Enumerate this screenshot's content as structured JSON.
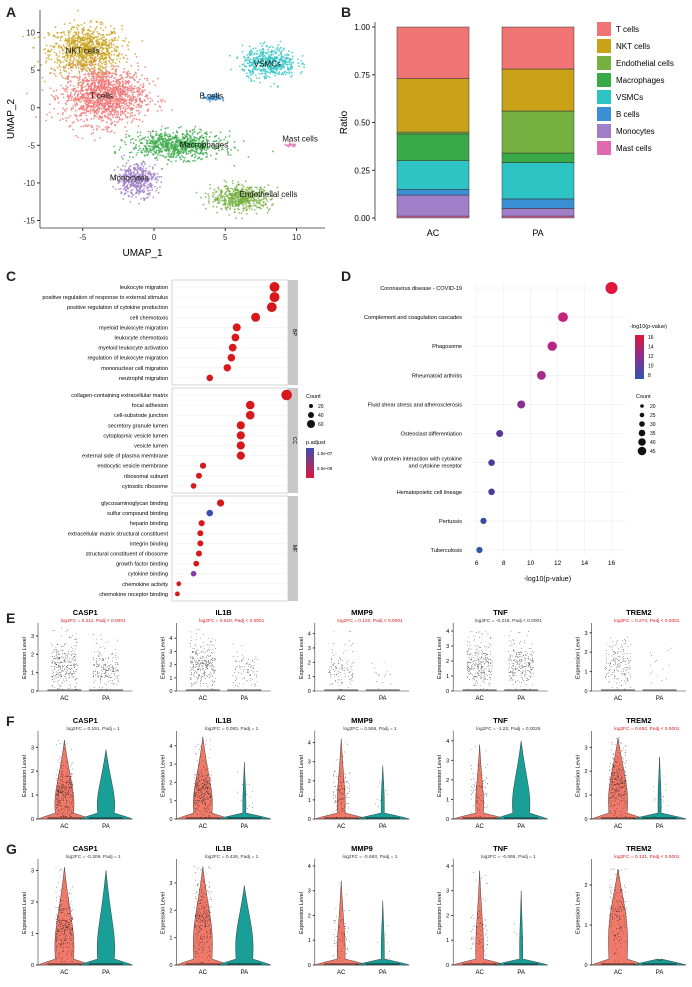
{
  "panel_letters": [
    "A",
    "B",
    "C",
    "D",
    "E",
    "F",
    "G"
  ],
  "colors": {
    "red": "#d7191c",
    "teal": "#1a9e98",
    "salmon": "#f07474",
    "cyan": "#2ec4c4",
    "gold": "#c9a21a",
    "green": "#3aaa48",
    "darkgreen": "#76b041",
    "blue": "#3b8fd4",
    "purple": "#a07fc8",
    "pink": "#e06ab0",
    "orange": "#e08a2a"
  },
  "panelA": {
    "xlabel": "UMAP_1",
    "ylabel": "UMAP_2",
    "xticks": [
      "-5",
      "0",
      "5",
      "10"
    ],
    "yticks": [
      "10",
      "5",
      "0",
      "-5",
      "-10",
      "-15"
    ],
    "xrange": [
      -8,
      12
    ],
    "yrange": [
      -16,
      13
    ],
    "clusters": [
      {
        "label": "NKT cells",
        "color": "#c9a21a",
        "cx": -4.8,
        "cy": 7.6,
        "rx": 2.8,
        "ry": 3.6,
        "n": 900,
        "lx": -6.2,
        "ly": 7.2
      },
      {
        "label": "T cells",
        "color": "#f07474",
        "cx": -3.5,
        "cy": 1.6,
        "rx": 3.2,
        "ry": 4.2,
        "n": 1400,
        "lx": -4.5,
        "ly": 1.2
      },
      {
        "label": "B cells",
        "color": "#3b8fd4",
        "cx": 4.1,
        "cy": 1.3,
        "rx": 0.7,
        "ry": 0.5,
        "n": 60,
        "lx": 3.2,
        "ly": 1.2
      },
      {
        "label": "VSMCs",
        "color": "#2ec4c4",
        "cx": 8.1,
        "cy": 6.0,
        "rx": 2.1,
        "ry": 2.3,
        "n": 500,
        "lx": 7.0,
        "ly": 5.5
      },
      {
        "label": "Mast cells",
        "color": "#e06ab0",
        "cx": 9.6,
        "cy": -5.0,
        "rx": 0.5,
        "ry": 0.3,
        "n": 20,
        "lx": 9.0,
        "ly": -4.5
      },
      {
        "label": "Macrophages",
        "color": "#3aaa48",
        "cx": 1.6,
        "cy": -5.0,
        "rx": 3.5,
        "ry": 2.0,
        "n": 800,
        "lx": 1.8,
        "ly": -5.3
      },
      {
        "label": "Monocytes",
        "color": "#a07fc8",
        "cx": -1.2,
        "cy": -9.6,
        "rx": 1.6,
        "ry": 2.4,
        "n": 450,
        "lx": -3.1,
        "ly": -9.7
      },
      {
        "label": "Endothelial cells",
        "color": "#76b041",
        "cx": 6.1,
        "cy": -12.0,
        "rx": 2.3,
        "ry": 1.8,
        "n": 550,
        "lx": 6.0,
        "ly": -11.9
      }
    ]
  },
  "panelB": {
    "ylabel": "Ratio",
    "categories": [
      "AC",
      "PA"
    ],
    "yticks": [
      "0.00",
      "0.25",
      "0.50",
      "0.75",
      "1.00"
    ],
    "legend": [
      "T cells",
      "NKT cells",
      "Endothelial cells",
      "Macrophages",
      "VSMCs",
      "B cells",
      "Monocytes",
      "Mast cells"
    ],
    "legend_colors": [
      "#f07474",
      "#c9a21a",
      "#76b041",
      "#3aaa48",
      "#2ec4c4",
      "#3b8fd4",
      "#a07fc8",
      "#e06ab0"
    ],
    "stack_order_bottom_up": [
      "Mast cells",
      "Monocytes",
      "B cells",
      "VSMCs",
      "Macrophages",
      "Endothelial cells",
      "NKT cells",
      "T cells"
    ],
    "values": {
      "AC": [
        0.01,
        0.11,
        0.03,
        0.15,
        0.14,
        0.01,
        0.28,
        0.27
      ],
      "PA": [
        0.01,
        0.04,
        0.05,
        0.19,
        0.05,
        0.22,
        0.22,
        0.22
      ]
    },
    "colors_bottom_up": [
      "#e06ab0",
      "#a07fc8",
      "#3b8fd4",
      "#2ec4c4",
      "#3aaa48",
      "#76b041",
      "#c9a21a",
      "#f07474"
    ]
  },
  "panelC": {
    "xlabel": "GeneRatio",
    "xticks": [
      "0.025",
      "0.050",
      "0.075",
      "0.100"
    ],
    "xrange": [
      0.022,
      0.108
    ],
    "legend_count_title": "Count",
    "legend_count_vals": [
      "20",
      "40",
      "60"
    ],
    "legend_p_title": "p.adjust",
    "legend_p_vals": [
      "1.0e-07",
      "5.0e-06"
    ],
    "groups": [
      {
        "strip": "BP",
        "terms": [
          {
            "t": "leukocyte migration",
            "x": 0.098,
            "c": "#d7191c"
          },
          {
            "t": "positive regulation of response to external stimulus",
            "x": 0.098,
            "c": "#d7191c"
          },
          {
            "t": "positive regulation of cytokine production",
            "x": 0.096,
            "c": "#d7191c"
          },
          {
            "t": "cell chemotaxis",
            "x": 0.084,
            "c": "#d7191c"
          },
          {
            "t": "myeloid leukocyte migration",
            "x": 0.07,
            "c": "#d7191c"
          },
          {
            "t": "leukocyte chemotaxis",
            "x": 0.069,
            "c": "#d7191c"
          },
          {
            "t": "myeloid leukocyte activation",
            "x": 0.067,
            "c": "#d7191c"
          },
          {
            "t": "regulation of leukocyte migration",
            "x": 0.066,
            "c": "#d7191c"
          },
          {
            "t": "mononuclear cell migration",
            "x": 0.063,
            "c": "#d7191c"
          },
          {
            "t": "neutrophil migration",
            "x": 0.05,
            "c": "#d7191c"
          }
        ]
      },
      {
        "strip": "CC",
        "terms": [
          {
            "t": "collagen-containing extracellular matrix",
            "x": 0.107,
            "c": "#d7191c"
          },
          {
            "t": "focal adhesion",
            "x": 0.08,
            "c": "#d7191c"
          },
          {
            "t": "cell-substrate junction",
            "x": 0.08,
            "c": "#d7191c"
          },
          {
            "t": "secretory granule lumen",
            "x": 0.073,
            "c": "#d7191c"
          },
          {
            "t": "cytoplasmic vesicle lumen",
            "x": 0.073,
            "c": "#d7191c"
          },
          {
            "t": "vesicle lumen",
            "x": 0.073,
            "c": "#d7191c"
          },
          {
            "t": "external side of plasma membrane",
            "x": 0.073,
            "c": "#d7191c"
          },
          {
            "t": "endocytic vesicle membrane",
            "x": 0.045,
            "c": "#d7191c"
          },
          {
            "t": "ribosomal subunit",
            "x": 0.042,
            "c": "#d7191c"
          },
          {
            "t": "cytosolic ribosome",
            "x": 0.038,
            "c": "#d7191c"
          }
        ]
      },
      {
        "strip": "MF",
        "terms": [
          {
            "t": "glycosaminoglycan binding",
            "x": 0.058,
            "c": "#d7191c"
          },
          {
            "t": "sulfur compound binding",
            "x": 0.05,
            "c": "#3b4fb0"
          },
          {
            "t": "heparin binding",
            "x": 0.044,
            "c": "#d7191c"
          },
          {
            "t": "extracellular matrix structural constituent",
            "x": 0.043,
            "c": "#d7191c"
          },
          {
            "t": "integrin binding",
            "x": 0.043,
            "c": "#d7191c"
          },
          {
            "t": "structural constituent of ribosome",
            "x": 0.042,
            "c": "#d7191c"
          },
          {
            "t": "growth factor binding",
            "x": 0.04,
            "c": "#d7191c"
          },
          {
            "t": "cytokine binding",
            "x": 0.038,
            "c": "#8a3aa8"
          },
          {
            "t": "chemokine activity",
            "x": 0.027,
            "c": "#d7191c"
          },
          {
            "t": "chemokine receptor binding",
            "x": 0.026,
            "c": "#d7191c"
          }
        ]
      }
    ]
  },
  "panelD": {
    "xlabel": "-log10(p-value)",
    "xticks": [
      "6",
      "8",
      "10",
      "12",
      "14",
      "16"
    ],
    "xrange": [
      5.5,
      17
    ],
    "legend_color_title": "-log10(p-value)",
    "legend_color_vals": [
      "16",
      "14",
      "12",
      "10",
      "8"
    ],
    "legend_count_title": "Count",
    "legend_count_vals": [
      "20",
      "25",
      "30",
      "35",
      "40",
      "45"
    ],
    "terms": [
      {
        "t": "Coronavirus disease - COVID-19",
        "x": 16.0,
        "c": "#e0163a"
      },
      {
        "t": "Complement and coagulation cascades",
        "x": 12.4,
        "c": "#c4237a"
      },
      {
        "t": "Phagosome",
        "x": 11.6,
        "c": "#b8258a"
      },
      {
        "t": "Rheumatoid arthritis",
        "x": 10.8,
        "c": "#a52a8c"
      },
      {
        "t": "Fluid shear stress and atherosclerosis",
        "x": 9.3,
        "c": "#8a2f92"
      },
      {
        "t": "Osteoclast differentiation",
        "x": 7.7,
        "c": "#5a3796"
      },
      {
        "t": "Viral protein interaction with cytokine and cytokine receptor",
        "x": 7.1,
        "c": "#4a3b9a"
      },
      {
        "t": "Hematopoietic cell lineage",
        "x": 7.1,
        "c": "#4a3b9a"
      },
      {
        "t": "Pertussis",
        "x": 6.5,
        "c": "#3a4ba4"
      },
      {
        "t": "Tuberculosis",
        "x": 6.2,
        "c": "#2e55b0"
      }
    ]
  },
  "panelE": {
    "ylabel": "Expression Level",
    "groups": [
      "AC",
      "PA"
    ],
    "genes": [
      {
        "g": "CASP1",
        "stat": "log2FC = 0.211, Padj < 0.0001",
        "red": true,
        "yticks": [
          "0",
          "1",
          "2",
          "3"
        ],
        "ymax": 3.6,
        "style": "jitter",
        "ac": {
          "dens": 1.0,
          "top": 3.5,
          "mid": 1.3
        },
        "pa": {
          "dens": 0.7,
          "top": 3.1,
          "mid": 1.1
        }
      },
      {
        "g": "IL1B",
        "stat": "log2FC = 0.610, Padj < 0.0001",
        "red": true,
        "yticks": [
          "0",
          "1",
          "2",
          "3",
          "4"
        ],
        "ymax": 5.0,
        "style": "jitter",
        "ac": {
          "dens": 1.0,
          "top": 4.8,
          "mid": 1.8
        },
        "pa": {
          "dens": 0.3,
          "top": 3.8,
          "mid": 1.5
        }
      },
      {
        "g": "MMP9",
        "stat": "log2FC = 0.120, Padj < 0.0001",
        "red": true,
        "yticks": [
          "0",
          "1",
          "2",
          "3",
          "4"
        ],
        "ymax": 4.6,
        "style": "jitter",
        "ac": {
          "dens": 0.4,
          "top": 4.2,
          "mid": 1.4
        },
        "pa": {
          "dens": 0.05,
          "top": 2.5,
          "mid": 1.2
        }
      },
      {
        "g": "TNF",
        "stat": "log2FC = -0.218, Padj < 0.0001",
        "red": false,
        "yticks": [
          "0",
          "1",
          "2",
          "3",
          "4"
        ],
        "ymax": 4.4,
        "style": "jitter",
        "ac": {
          "dens": 1.0,
          "top": 4.0,
          "mid": 1.6
        },
        "pa": {
          "dens": 0.85,
          "top": 4.0,
          "mid": 1.6
        }
      },
      {
        "g": "TREM2",
        "stat": "log2FC = 0.274, Padj < 0.0001",
        "red": true,
        "yticks": [
          "0",
          "1",
          "2",
          "3"
        ],
        "ymax": 3.4,
        "style": "jitter",
        "ac": {
          "dens": 0.6,
          "top": 3.1,
          "mid": 1.3
        },
        "pa": {
          "dens": 0.05,
          "top": 2.6,
          "mid": 1.0
        }
      }
    ]
  },
  "panelF": {
    "ylabel": "Expression Level",
    "groups": [
      "AC",
      "PA"
    ],
    "genes": [
      {
        "g": "CASP1",
        "stat": "log2FC = 0.151, Padj = 1",
        "red": false,
        "yticks": [
          "0",
          "1",
          "2",
          "3"
        ],
        "ymax": 3.6,
        "ac": {
          "dens": 1.0,
          "top": 3.3,
          "mid": 1.1
        },
        "pa": {
          "dens": 0.0,
          "top": 2.9,
          "mid": 1.0
        }
      },
      {
        "g": "IL1B",
        "stat": "log2FC = 0.093, Padj = 1",
        "red": false,
        "yticks": [
          "0",
          "1",
          "2",
          "3",
          "4"
        ],
        "ymax": 4.7,
        "ac": {
          "dens": 1.0,
          "top": 4.5,
          "mid": 1.5
        },
        "pa": {
          "dens": 0.05,
          "top": 3.1,
          "mid": 1.2
        }
      },
      {
        "g": "MMP9",
        "stat": "log2FC = 0.556, Padj = 1",
        "red": false,
        "yticks": [
          "0",
          "1",
          "2",
          "3",
          "4"
        ],
        "ymax": 4.5,
        "ac": {
          "dens": 0.4,
          "top": 4.2,
          "mid": 1.4
        },
        "pa": {
          "dens": 0.03,
          "top": 2.8,
          "mid": 1.2
        }
      },
      {
        "g": "TNF",
        "stat": "log2FC = -1.22, Padj = 0.0026",
        "red": false,
        "yticks": [
          "0",
          "1",
          "2",
          "3",
          "4"
        ],
        "ymax": 4.4,
        "ac": {
          "dens": 0.3,
          "top": 3.8,
          "mid": 1.2
        },
        "pa": {
          "dens": 0.0,
          "top": 4.0,
          "mid": 1.4
        }
      },
      {
        "g": "TREM2",
        "stat": "log2FC = 0.652, Padj < 0.0001",
        "red": true,
        "yticks": [
          "0",
          "1",
          "2",
          "3"
        ],
        "ymax": 3.6,
        "ac": {
          "dens": 1.0,
          "top": 3.4,
          "mid": 1.4
        },
        "pa": {
          "dens": 0.05,
          "top": 2.6,
          "mid": 1.1
        }
      }
    ]
  },
  "panelG": {
    "ylabel": "Expression Level",
    "groups": [
      "AC",
      "PA"
    ],
    "genes": [
      {
        "g": "CASP1",
        "stat": "log2FC = -0.306, Padj = 1",
        "red": false,
        "yticks": [
          "0",
          "1",
          "2",
          "3"
        ],
        "ymax": 3.3,
        "ac": {
          "dens": 1.0,
          "top": 3.1,
          "mid": 1.1
        },
        "pa": {
          "dens": 0.0,
          "top": 3.0,
          "mid": 1.0
        }
      },
      {
        "g": "IL1B",
        "stat": "log2FC = 0.426, Padj = 1",
        "red": false,
        "yticks": [
          "0",
          "1",
          "2",
          "3"
        ],
        "ymax": 3.8,
        "ac": {
          "dens": 1.0,
          "top": 3.6,
          "mid": 1.5
        },
        "pa": {
          "dens": 0.0,
          "top": 2.9,
          "mid": 1.2
        }
      },
      {
        "g": "MMP9",
        "stat": "log2FC = -0.693, Padj = 1",
        "red": false,
        "yticks": [
          "0",
          "1",
          "2",
          "3",
          "4"
        ],
        "ymax": 4.2,
        "ac": {
          "dens": 0.2,
          "top": 3.4,
          "mid": 1.1
        },
        "pa": {
          "dens": 0.02,
          "top": 2.6,
          "mid": 1.0
        }
      },
      {
        "g": "TNF",
        "stat": "log2FC = -0.065, Padj = 1",
        "red": false,
        "yticks": [
          "0",
          "1",
          "2",
          "3",
          "4"
        ],
        "ymax": 4.2,
        "ac": {
          "dens": 0.25,
          "top": 3.8,
          "mid": 1.2
        },
        "pa": {
          "dens": 0.02,
          "top": 3.0,
          "mid": 1.1
        }
      },
      {
        "g": "TREM2",
        "stat": "log2FC = 0.131, Padj < 0.0001",
        "red": true,
        "yticks": [
          "0",
          "1",
          "2"
        ],
        "ymax": 2.6,
        "ac": {
          "dens": 0.55,
          "top": 2.4,
          "mid": 1.2
        },
        "pa": {
          "dens": 0.0,
          "top": 0.1,
          "mid": 0.0
        }
      }
    ]
  }
}
